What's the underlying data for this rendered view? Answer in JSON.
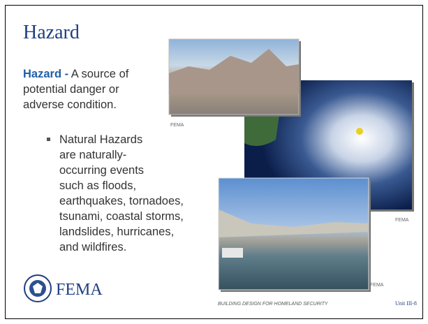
{
  "title": "Hazard",
  "definition": {
    "term": "Hazard -",
    "lines": [
      " A source of",
      "potential danger or",
      "adverse condition."
    ]
  },
  "bullet": {
    "lines": [
      "Natural Hazards",
      "are naturally-",
      "occurring events",
      "such as floods,",
      "earthquakes, tornadoes,",
      "tsunami, coastal storms,",
      "landslides, hurricanes,",
      "and wildfires."
    ]
  },
  "photo_credits": [
    "FEMA",
    "FEMA",
    "FEMA"
  ],
  "logo": "FEMA",
  "footer": {
    "course": "BUILDING DESIGN FOR HOMELAND SECURITY",
    "unit": "Unit III-8"
  }
}
